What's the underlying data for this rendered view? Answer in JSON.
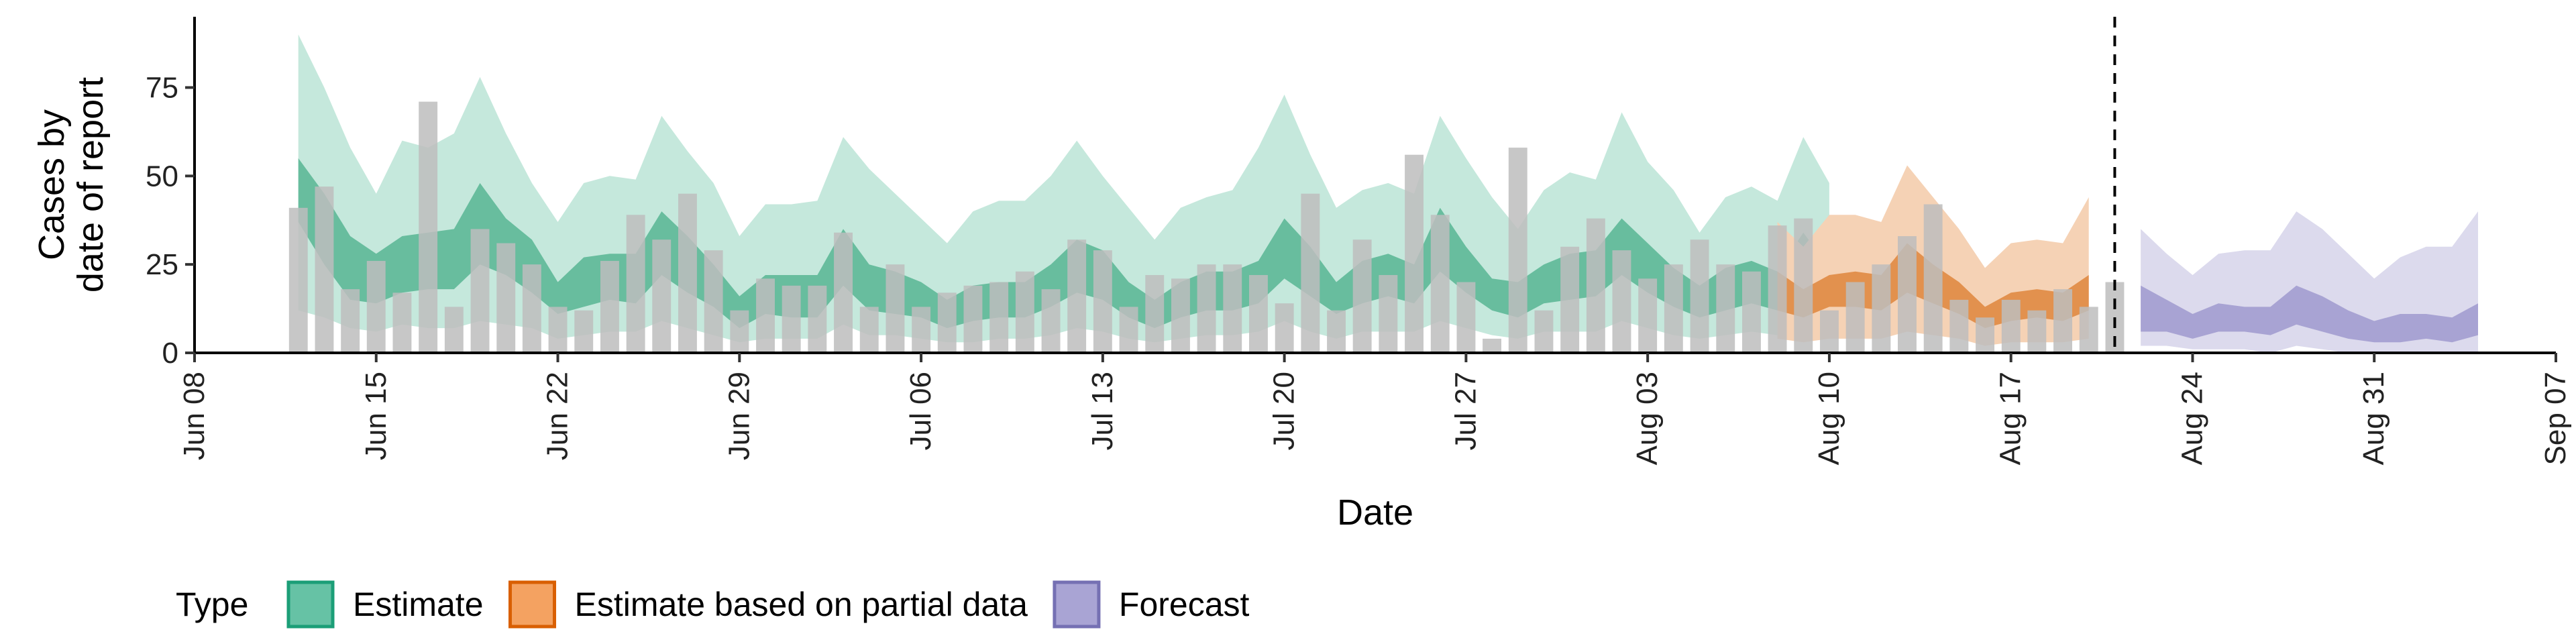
{
  "chart_data": {
    "type": "bar+area",
    "xlabel": "Date",
    "ylabel_lines": [
      "Cases by",
      "date of report"
    ],
    "ylim": [
      0,
      95
    ],
    "yticks": [
      0,
      25,
      50,
      75
    ],
    "xlim": [
      "2020-06-08",
      "2020-09-07"
    ],
    "xticks": [
      "2020-06-08",
      "2020-06-15",
      "2020-06-22",
      "2020-06-29",
      "2020-07-06",
      "2020-07-13",
      "2020-07-20",
      "2020-07-27",
      "2020-08-03",
      "2020-08-10",
      "2020-08-17",
      "2020-08-24",
      "2020-08-31",
      "2020-09-07"
    ],
    "xtick_labels": [
      "Jun 08",
      "Jun 15",
      "Jun 22",
      "Jun 29",
      "Jul 06",
      "Jul 13",
      "Jul 20",
      "Jul 27",
      "Aug 03",
      "Aug 10",
      "Aug 17",
      "Aug 24",
      "Aug 31",
      "Sep 07"
    ],
    "vline_date": "2020-08-21",
    "bar_color": "#bdbdbd",
    "bars": {
      "start_date": "2020-06-12",
      "values": [
        41,
        47,
        18,
        26,
        17,
        71,
        13,
        35,
        31,
        25,
        13,
        12,
        26,
        39,
        32,
        45,
        29,
        12,
        21,
        19,
        19,
        34,
        13,
        25,
        13,
        17,
        19,
        20,
        23,
        18,
        32,
        29,
        13,
        22,
        21,
        25,
        25,
        22,
        14,
        45,
        12,
        32,
        22,
        56,
        39,
        20,
        4,
        58,
        12,
        30,
        38,
        29,
        21,
        25,
        32,
        25,
        23,
        36,
        38,
        12,
        20,
        25,
        33,
        42,
        15,
        10,
        15,
        12,
        18,
        13,
        20
      ]
    },
    "legend": {
      "title": "Type",
      "items": [
        {
          "label": "Estimate",
          "fill": "#66c2a5",
          "border": "#1b9e77"
        },
        {
          "label": "Estimate based on partial data",
          "fill": "#f4a261",
          "border": "#d95f02"
        },
        {
          "label": "Forecast",
          "fill": "#a9a4d4",
          "border": "#7570b3"
        }
      ]
    },
    "series": [
      {
        "name": "Estimate",
        "outer_color": "#c5e8dc",
        "inner_color": "#5db897",
        "start_date": "2020-06-12",
        "upper90": [
          90,
          75,
          58,
          45,
          60,
          58,
          62,
          78,
          62,
          48,
          37,
          48,
          50,
          49,
          67,
          57,
          48,
          33,
          42,
          42,
          43,
          61,
          52,
          45,
          38,
          31,
          40,
          43,
          43,
          50,
          60,
          50,
          41,
          32,
          41,
          44,
          46,
          58,
          73,
          56,
          41,
          46,
          48,
          45,
          67,
          55,
          44,
          35,
          46,
          51,
          49,
          68,
          54,
          46,
          34,
          44,
          47,
          43,
          61,
          48
        ],
        "upper50": [
          55,
          45,
          33,
          28,
          33,
          34,
          35,
          48,
          38,
          32,
          20,
          27,
          28,
          28,
          40,
          33,
          25,
          16,
          22,
          22,
          22,
          35,
          25,
          23,
          20,
          15,
          19,
          20,
          20,
          25,
          32,
          29,
          20,
          15,
          20,
          23,
          23,
          26,
          38,
          30,
          20,
          26,
          28,
          25,
          41,
          30,
          21,
          20,
          25,
          28,
          29,
          38,
          31,
          24,
          19,
          24,
          26,
          23,
          34,
          24
        ],
        "lower50": [
          37,
          25,
          15,
          14,
          17,
          18,
          18,
          25,
          22,
          17,
          11,
          13,
          15,
          14,
          22,
          17,
          13,
          7,
          11,
          10,
          10,
          19,
          12,
          11,
          10,
          7,
          9,
          10,
          10,
          13,
          17,
          15,
          10,
          7,
          10,
          12,
          12,
          14,
          21,
          16,
          11,
          14,
          16,
          14,
          23,
          17,
          12,
          10,
          14,
          15,
          16,
          22,
          17,
          13,
          10,
          12,
          14,
          12,
          19,
          13
        ],
        "lower90": [
          12,
          10,
          7,
          6,
          8,
          7,
          7,
          9,
          8,
          7,
          4,
          5,
          6,
          6,
          9,
          7,
          5,
          3,
          4,
          4,
          4,
          8,
          5,
          5,
          4,
          3,
          3,
          4,
          4,
          5,
          7,
          6,
          4,
          3,
          4,
          5,
          5,
          6,
          9,
          6,
          4,
          6,
          6,
          6,
          9,
          7,
          5,
          4,
          6,
          6,
          6,
          9,
          7,
          5,
          4,
          5,
          6,
          5,
          8,
          5
        ]
      },
      {
        "name": "Estimate based on partial data",
        "outer_color": "#f5d2b5",
        "inner_color": "#e08a43",
        "start_date": "2020-08-08",
        "upper90": [
          37,
          30,
          39,
          39,
          37,
          53,
          44,
          35,
          24,
          31,
          32,
          31,
          44
        ],
        "upper50": [
          23,
          18,
          22,
          23,
          22,
          31,
          25,
          20,
          13,
          17,
          18,
          17,
          22
        ],
        "lower50": [
          12,
          10,
          13,
          13,
          12,
          17,
          14,
          11,
          7,
          9,
          10,
          9,
          12
        ],
        "lower90": [
          4,
          3,
          4,
          4,
          4,
          6,
          5,
          4,
          2,
          3,
          3,
          3,
          4
        ]
      },
      {
        "name": "Forecast",
        "outer_color": "#dcdaed",
        "inner_color": "#a29ccf",
        "start_date": "2020-08-22",
        "upper90": [
          35,
          28,
          22,
          28,
          29,
          29,
          40,
          35,
          28,
          21,
          27,
          30,
          30,
          40
        ],
        "upper50": [
          19,
          15,
          11,
          14,
          13,
          13,
          19,
          16,
          12,
          9,
          11,
          11,
          10,
          14
        ],
        "lower50": [
          6,
          6,
          4,
          6,
          6,
          5,
          8,
          6,
          4,
          3,
          3,
          4,
          3,
          5
        ],
        "lower90": [
          2,
          2,
          1,
          1,
          1,
          0,
          2,
          1,
          0,
          0,
          0,
          0,
          0,
          0
        ]
      }
    ]
  }
}
